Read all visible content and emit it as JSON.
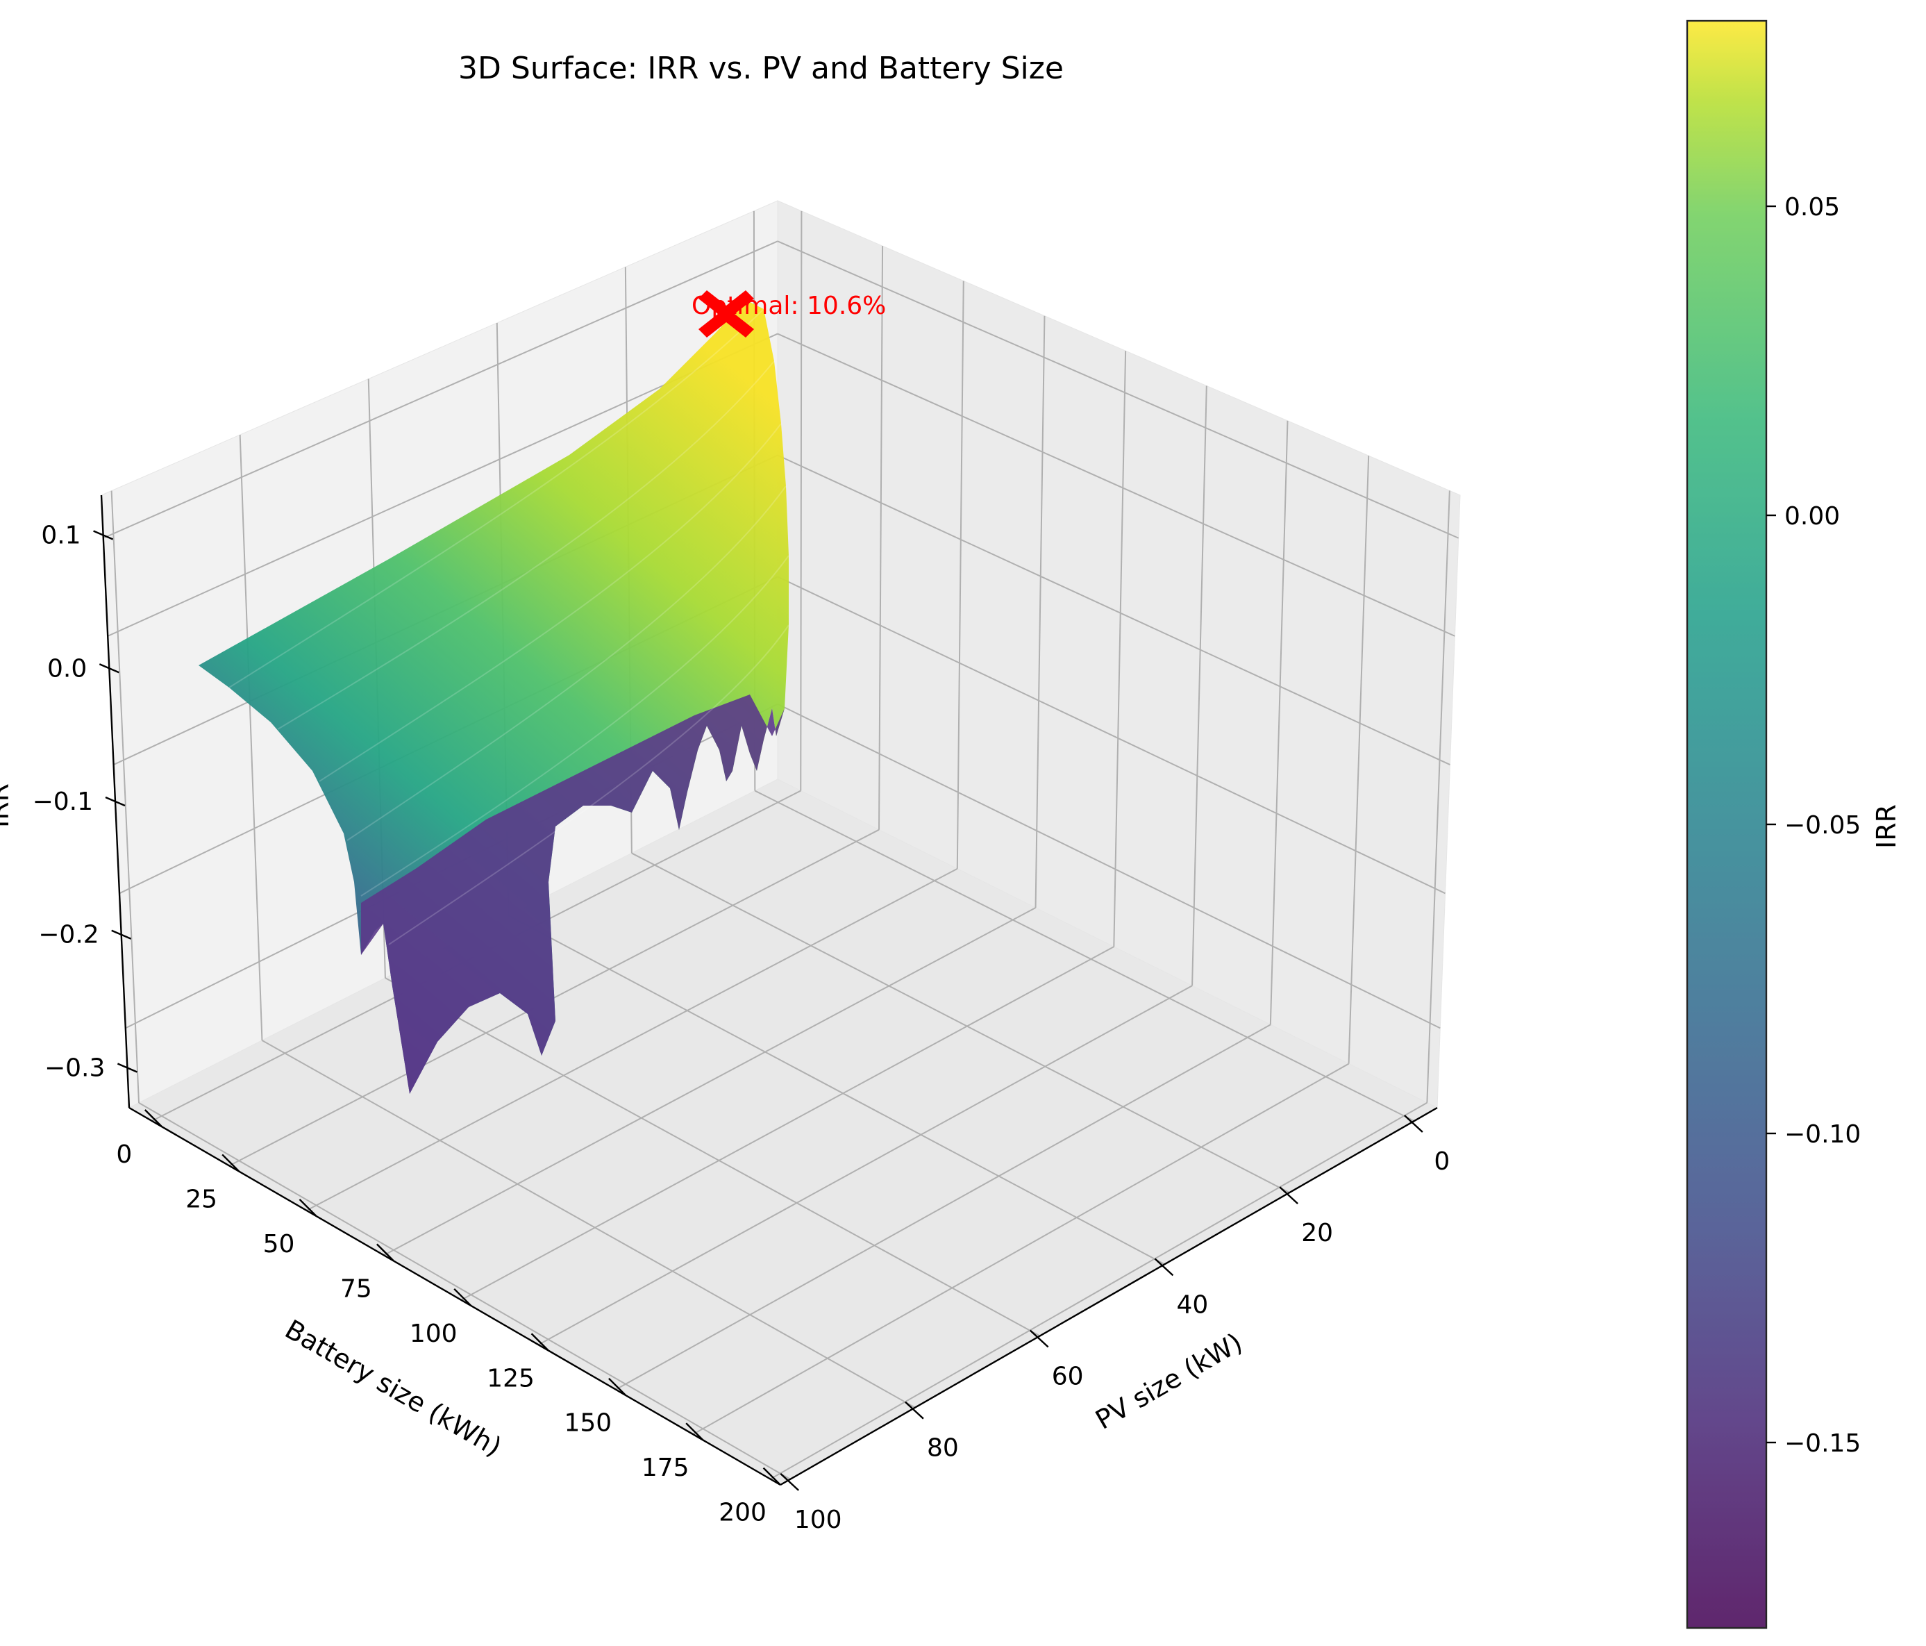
{
  "chart_data": {
    "type": "surface3d",
    "title": "3D Surface: IRR vs. PV and Battery Size",
    "xlabel": "PV size (kW)",
    "ylabel": "Battery size (kWh)",
    "zlabel": "IRR",
    "x_ticks": [
      "0",
      "20",
      "40",
      "60",
      "80",
      "100"
    ],
    "y_ticks": [
      "0",
      "25",
      "50",
      "75",
      "100",
      "125",
      "150",
      "175",
      "200"
    ],
    "z_ticks": [
      "−0.3",
      "−0.2",
      "−0.1",
      "0.0",
      "0.1"
    ],
    "xlim": [
      0,
      100
    ],
    "ylim": [
      0,
      200
    ],
    "zlim": [
      -0.33,
      0.13
    ],
    "grid": true,
    "colormap": "viridis",
    "colorbar": {
      "label": "IRR",
      "range": [
        -0.18,
        0.08
      ],
      "ticks": [
        "0.05",
        "0.00",
        "−0.05",
        "−0.10",
        "−0.15"
      ]
    },
    "surface_profiles": [
      {
        "pv": 6,
        "battery": [
          0,
          200
        ],
        "irr": [
          0.106,
          0.085
        ]
      },
      {
        "pv": 10,
        "battery": [
          0,
          200
        ],
        "irr": [
          0.098,
          -0.02
        ]
      },
      {
        "pv": 20,
        "battery": [
          0,
          200
        ],
        "irr": [
          0.085,
          -0.04
        ]
      },
      {
        "pv": 40,
        "battery": [
          0,
          200
        ],
        "irr": [
          0.055,
          -0.08
        ]
      },
      {
        "pv": 60,
        "battery": [
          0,
          200
        ],
        "irr": [
          0.03,
          -0.13
        ]
      },
      {
        "pv": 80,
        "battery": [
          0,
          200
        ],
        "irr": [
          0.0,
          -0.18
        ]
      },
      {
        "pv": 100,
        "battery": [
          0,
          200
        ],
        "irr": [
          -0.02,
          -0.33
        ]
      }
    ],
    "optimum": {
      "label": "Optimal: 10.6%",
      "irr": 0.106,
      "color": "#ff0000"
    }
  }
}
